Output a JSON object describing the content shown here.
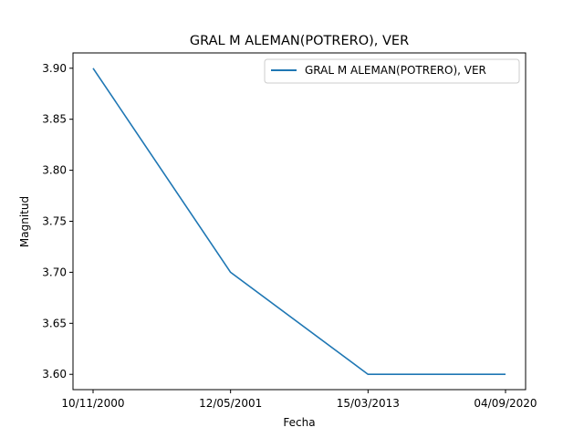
{
  "chart_data": {
    "type": "line",
    "title": "GRAL M ALEMAN(POTRERO), VER",
    "xlabel": "Fecha",
    "ylabel": "Magnitud",
    "categories": [
      "10/11/2000",
      "12/05/2001",
      "15/03/2013",
      "04/09/2020"
    ],
    "series": [
      {
        "name": "GRAL M ALEMAN(POTRERO), VER",
        "values": [
          3.9,
          3.7,
          3.6,
          3.6
        ],
        "color": "#1f77b4"
      }
    ],
    "ylim": [
      3.585,
      3.915
    ],
    "yticks": [
      "3.60",
      "3.65",
      "3.70",
      "3.75",
      "3.80",
      "3.85",
      "3.90"
    ],
    "grid": false,
    "legend_position": "top-right"
  }
}
